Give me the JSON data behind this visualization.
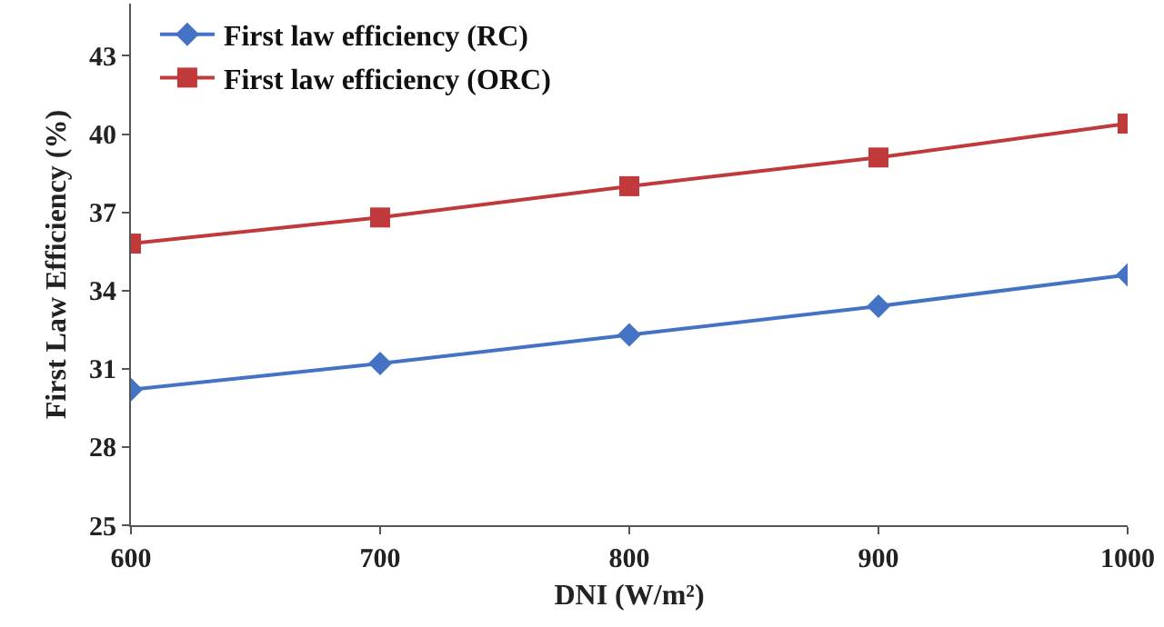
{
  "chart_data": {
    "type": "line",
    "xlabel": "DNI (W/m²)",
    "ylabel": "First Law Efficiency (%)",
    "x": [
      600,
      700,
      800,
      900,
      1000
    ],
    "series": [
      {
        "name": "First law efficiency (RC)",
        "color": "#4472c4",
        "marker": "diamond",
        "values": [
          30.2,
          31.2,
          32.3,
          33.4,
          34.6
        ]
      },
      {
        "name": "First law efficiency (ORC)",
        "color": "#c0393b",
        "marker": "square",
        "values": [
          35.8,
          36.8,
          38.0,
          39.1,
          40.4
        ]
      }
    ],
    "xlim": [
      600,
      1000
    ],
    "xticks": [
      600,
      700,
      800,
      900,
      1000
    ],
    "ylim": [
      25,
      45
    ],
    "yticks": [
      25,
      28,
      31,
      34,
      37,
      40,
      43
    ],
    "grid": false,
    "legend": "top left",
    "line_style": "solid"
  }
}
